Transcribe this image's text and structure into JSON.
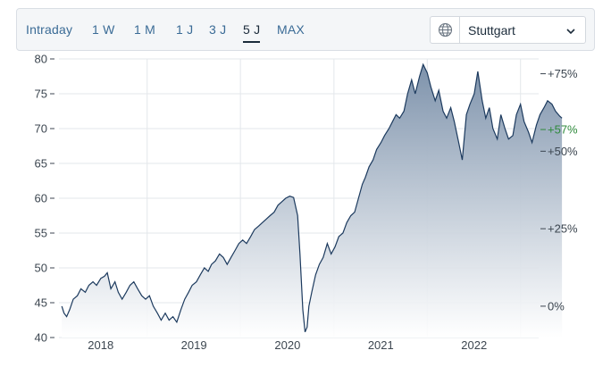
{
  "toolbar": {
    "tabs": [
      {
        "label": "Intraday"
      },
      {
        "label": "1 W"
      },
      {
        "label": "1 M"
      },
      {
        "label": "1 J"
      },
      {
        "label": "3 J"
      },
      {
        "label": "5 J",
        "active": true
      },
      {
        "label": "MAX"
      }
    ],
    "exchange": {
      "selected": "Stuttgart",
      "icon": "globe-icon",
      "dropdown_icon": "chevron-down-icon"
    }
  },
  "colors": {
    "line": "#1c3a5e",
    "area_top": "#7d92ab",
    "area_bottom": "#ffffff",
    "grid": "#e3e7eb",
    "positive": "#2f8a3c"
  },
  "chart_data": {
    "type": "area",
    "ylim": [
      40,
      80
    ],
    "y_ticks": [
      "40",
      "45",
      "50",
      "55",
      "60",
      "65",
      "70",
      "75",
      "80"
    ],
    "x_ticks": [
      "2018",
      "2019",
      "2020",
      "2021",
      "2022"
    ],
    "right_axis": {
      "ticks": [
        "+75%",
        "+50%",
        "+25%",
        "0%"
      ],
      "current_change": "+57%"
    },
    "grid": true,
    "series": [
      {
        "x": [
          "2017-08-01",
          "2017-08-10",
          "2017-08-20",
          "2017-09-01",
          "2017-09-15",
          "2017-10-01",
          "2017-10-15",
          "2017-11-01",
          "2017-11-15",
          "2017-12-01",
          "2017-12-15",
          "2018-01-01",
          "2018-01-15",
          "2018-01-26",
          "2018-02-09",
          "2018-02-25",
          "2018-03-10",
          "2018-03-25",
          "2018-04-10",
          "2018-04-25",
          "2018-05-10",
          "2018-05-25",
          "2018-06-10",
          "2018-06-25",
          "2018-07-10",
          "2018-07-25",
          "2018-08-10",
          "2018-08-25",
          "2018-09-10",
          "2018-09-25",
          "2018-10-10",
          "2018-10-25",
          "2018-11-10",
          "2018-11-25",
          "2018-12-10",
          "2018-12-24",
          "2019-01-10",
          "2019-01-25",
          "2019-02-10",
          "2019-02-25",
          "2019-03-10",
          "2019-03-25",
          "2019-04-10",
          "2019-04-25",
          "2019-05-10",
          "2019-05-25",
          "2019-06-10",
          "2019-06-25",
          "2019-07-10",
          "2019-07-25",
          "2019-08-10",
          "2019-08-25",
          "2019-09-10",
          "2019-09-25",
          "2019-10-10",
          "2019-10-25",
          "2019-11-10",
          "2019-11-25",
          "2019-12-10",
          "2019-12-25",
          "2020-01-10",
          "2020-01-25",
          "2020-02-10",
          "2020-02-19",
          "2020-03-01",
          "2020-03-10",
          "2020-03-18",
          "2020-03-25",
          "2020-04-05",
          "2020-04-20",
          "2020-05-05",
          "2020-05-20",
          "2020-06-05",
          "2020-06-20",
          "2020-07-05",
          "2020-07-20",
          "2020-08-05",
          "2020-08-20",
          "2020-09-05",
          "2020-09-20",
          "2020-10-05",
          "2020-10-20",
          "2020-11-01",
          "2020-11-15",
          "2020-12-01",
          "2020-12-15",
          "2021-01-01",
          "2021-01-15",
          "2021-02-01",
          "2021-02-15",
          "2021-03-01",
          "2021-03-15",
          "2021-04-01",
          "2021-04-15",
          "2021-05-01",
          "2021-05-15",
          "2021-06-01",
          "2021-06-15",
          "2021-07-01",
          "2021-07-15",
          "2021-08-01",
          "2021-08-15",
          "2021-09-01",
          "2021-09-15",
          "2021-10-01",
          "2021-10-15",
          "2021-11-01",
          "2021-11-15",
          "2021-12-01",
          "2021-12-15",
          "2022-01-01",
          "2022-01-15",
          "2022-02-01",
          "2022-02-15",
          "2022-03-01",
          "2022-03-15",
          "2022-04-01",
          "2022-04-15",
          "2022-05-01",
          "2022-05-15",
          "2022-06-01",
          "2022-06-15",
          "2022-07-01",
          "2022-07-15",
          "2022-08-01",
          "2022-08-15",
          "2022-09-01",
          "2022-09-15",
          "2022-10-01",
          "2022-10-15",
          "2022-11-01",
          "2022-11-15",
          "2022-12-01",
          "2022-12-10"
        ],
        "values": [
          44.5,
          43.5,
          43.0,
          44.0,
          45.5,
          46.0,
          47.0,
          46.5,
          47.5,
          48.0,
          47.5,
          48.5,
          48.8,
          49.3,
          47.0,
          48.0,
          46.5,
          45.5,
          46.5,
          47.5,
          48.0,
          47.0,
          46.0,
          45.5,
          46.0,
          44.5,
          43.5,
          42.5,
          43.5,
          42.5,
          43.0,
          42.2,
          44.0,
          45.5,
          46.5,
          47.5,
          48.0,
          49.0,
          50.0,
          49.5,
          50.5,
          51.0,
          52.0,
          51.5,
          50.5,
          51.5,
          52.5,
          53.5,
          54.0,
          53.5,
          54.5,
          55.5,
          56.0,
          56.5,
          57.0,
          57.5,
          58.0,
          59.0,
          59.5,
          60.0,
          60.3,
          60.1,
          57.5,
          52.0,
          44.0,
          40.8,
          41.5,
          44.5,
          46.5,
          49.0,
          50.5,
          51.5,
          53.5,
          52.0,
          53.0,
          54.5,
          55.0,
          56.5,
          57.5,
          58.0,
          60.0,
          62.0,
          63.0,
          64.5,
          65.5,
          67.0,
          68.0,
          69.0,
          70.0,
          71.0,
          72.0,
          71.5,
          72.5,
          75.0,
          77.0,
          75.0,
          77.5,
          79.2,
          78.0,
          76.0,
          74.0,
          75.5,
          72.5,
          71.5,
          73.0,
          71.0,
          68.0,
          65.5,
          72.0,
          73.5,
          75.0,
          78.2,
          74.0,
          71.5,
          73.0,
          70.0,
          68.5,
          72.0,
          70.0,
          68.5,
          69.0,
          72.0,
          73.5,
          71.0,
          69.5,
          68.0,
          70.5,
          72.0,
          73.0,
          74.0,
          73.5,
          72.5,
          71.8,
          71.5
        ]
      }
    ]
  }
}
